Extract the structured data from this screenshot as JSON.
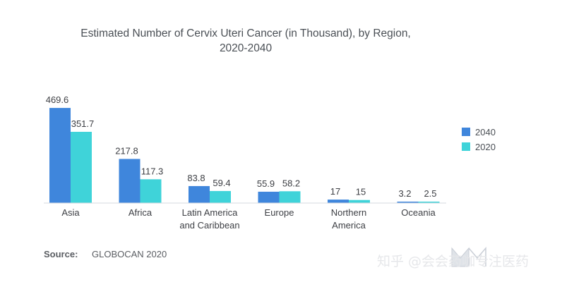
{
  "chart_data": {
    "type": "bar",
    "title_lines": [
      "Estimated Number of Cervix Uteri Cancer (in Thousand), by Region,",
      "2020-2040"
    ],
    "categories": [
      [
        "Asia"
      ],
      [
        "Africa"
      ],
      [
        "Latin America",
        "and Caribbean"
      ],
      [
        "Europe"
      ],
      [
        "Northern",
        "America"
      ],
      [
        "Oceania"
      ]
    ],
    "series": [
      {
        "name": "2040",
        "color": "#3f86dc",
        "values": [
          469.6,
          217.8,
          83.8,
          55.9,
          17,
          3.2
        ],
        "labels": [
          "469.6",
          "217.8",
          "83.8",
          "55.9",
          "17",
          "3.2"
        ]
      },
      {
        "name": "2020",
        "color": "#3fd3d9",
        "values": [
          351.7,
          117.3,
          59.4,
          58.2,
          15,
          2.5
        ],
        "labels": [
          "351.7",
          "117.3",
          "59.4",
          "58.2",
          "15",
          "2.5"
        ]
      }
    ],
    "ylim": [
      0,
      470
    ],
    "grid": false,
    "legend_position": "right",
    "source_label": "Source:",
    "source_value": "GLOBOCAN 2020"
  },
  "watermark": {
    "text": "知乎 @会会药咖专注医药",
    "logo_color": "#dfe3e8"
  }
}
